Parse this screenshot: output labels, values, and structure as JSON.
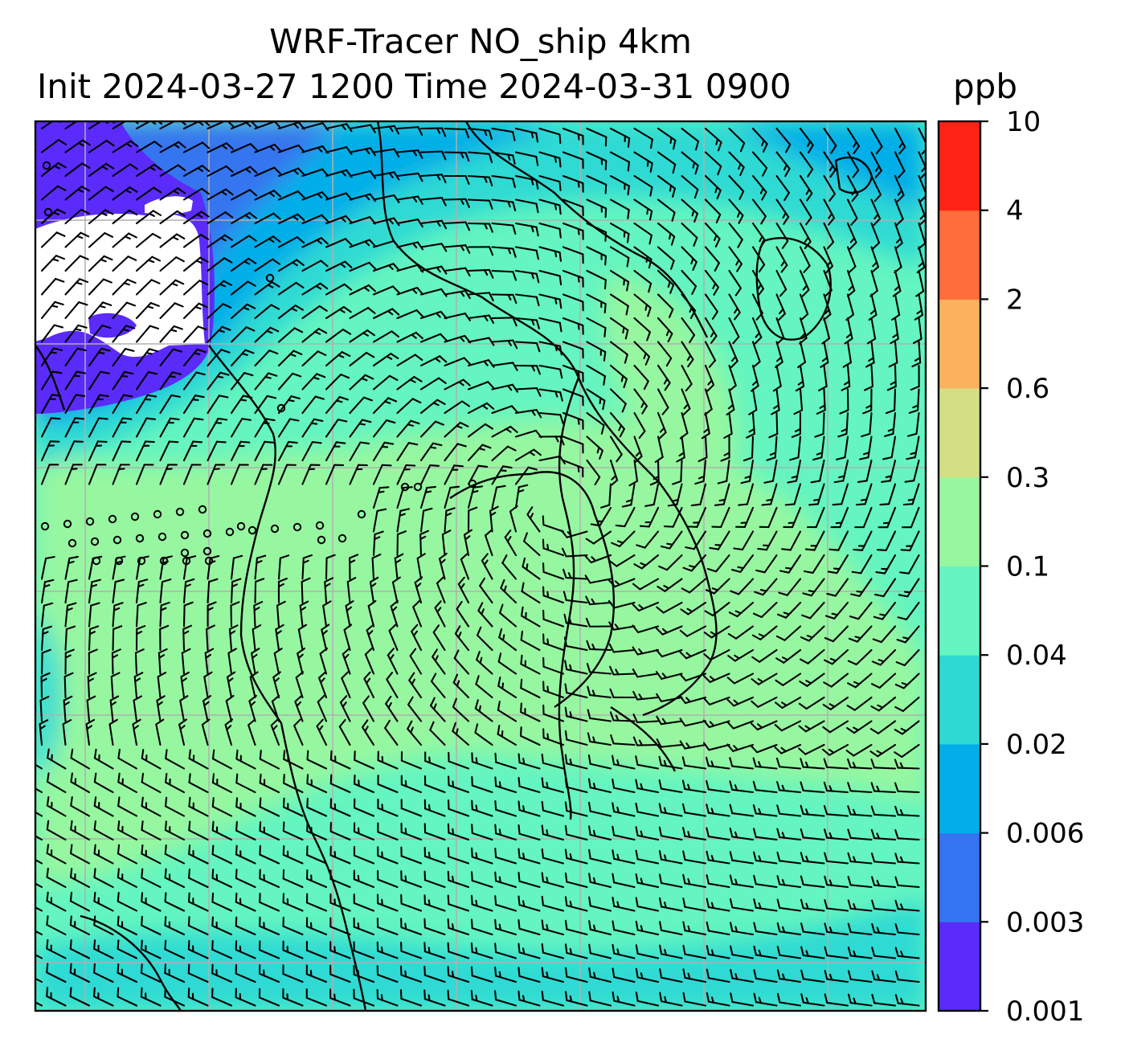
{
  "title": {
    "line1": "WRF-Tracer NO_ship 4km",
    "line2": "Init 2024-03-27 1200 Time 2024-03-31 0900",
    "units": "ppb"
  },
  "colorbar": {
    "levels": [
      "0.001",
      "0.003",
      "0.006",
      "0.02",
      "0.04",
      "0.1",
      "0.3",
      "0.6",
      "2",
      "4",
      "10"
    ],
    "colors": [
      "#5b2bfb",
      "#3574f0",
      "#03aee8",
      "#2ddad3",
      "#64f5c0",
      "#96f7a0",
      "#d3df82",
      "#fbb25f",
      "#ff6d3a",
      "#ff2316"
    ]
  },
  "map_colors": {
    "below_range": "#ffffff",
    "coastline": "#000000",
    "gridline": "#b0b0b0",
    "barb": "#000000"
  }
}
